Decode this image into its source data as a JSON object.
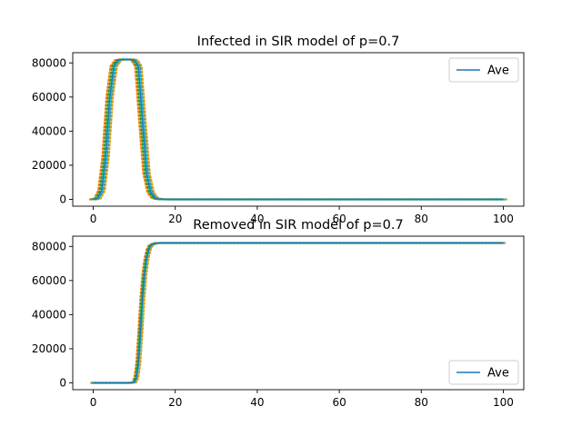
{
  "chart_data": [
    {
      "type": "line",
      "title": "Infected in SIR model of p=0.7",
      "xlabel": "",
      "ylabel": "",
      "xlim": [
        -5,
        105
      ],
      "ylim": [
        -4000,
        86000
      ],
      "xticks": [
        0,
        20,
        40,
        60,
        80,
        100
      ],
      "yticks": [
        0,
        20000,
        40000,
        60000,
        80000
      ],
      "grid": false,
      "legend_position": "top-right",
      "colors": {
        "average": "#1f77b4",
        "runs": [
          "#ff7f0e",
          "#2ca02c",
          "#1f77b4",
          "#d4a017",
          "#17becf"
        ]
      },
      "series": [
        {
          "name": "Ave",
          "x": [
            0,
            1,
            2,
            3,
            4,
            5,
            6,
            7,
            8,
            9,
            10,
            11,
            12,
            13,
            14,
            15,
            16,
            17,
            18,
            20,
            30,
            40,
            50,
            60,
            70,
            80,
            90,
            100
          ],
          "y": [
            0,
            500,
            5000,
            25000,
            60000,
            78000,
            81500,
            82000,
            82000,
            82000,
            81800,
            78000,
            45000,
            15000,
            4000,
            800,
            150,
            30,
            0,
            0,
            0,
            0,
            0,
            0,
            0,
            0,
            0,
            0
          ]
        }
      ],
      "runs_x_offsets": [
        -0.8,
        -0.4,
        0.4,
        0.8,
        0.2
      ]
    },
    {
      "type": "line",
      "title": "Removed in SIR model of p=0.7",
      "xlabel": "",
      "ylabel": "",
      "xlim": [
        -5,
        105
      ],
      "ylim": [
        -4000,
        86000
      ],
      "xticks": [
        0,
        20,
        40,
        60,
        80,
        100
      ],
      "yticks": [
        0,
        20000,
        40000,
        60000,
        80000
      ],
      "grid": false,
      "legend_position": "bottom-right",
      "colors": {
        "average": "#1f77b4",
        "runs": [
          "#ff7f0e",
          "#2ca02c",
          "#1f77b4",
          "#d4a017",
          "#17becf"
        ]
      },
      "series": [
        {
          "name": "Ave",
          "x": [
            0,
            1,
            2,
            3,
            4,
            5,
            6,
            7,
            8,
            9,
            10,
            10.5,
            11,
            11.5,
            12,
            12.5,
            13,
            13.5,
            14,
            15,
            16,
            17,
            18,
            20,
            30,
            40,
            50,
            60,
            70,
            80,
            90,
            100
          ],
          "y": [
            0,
            0,
            0,
            0,
            0,
            0,
            0,
            0,
            0,
            0,
            300,
            3000,
            12000,
            30000,
            50000,
            64000,
            73000,
            78000,
            80500,
            81800,
            82000,
            82000,
            82000,
            82000,
            82000,
            82000,
            82000,
            82000,
            82000,
            82000,
            82000,
            82000
          ]
        }
      ],
      "runs_x_offsets": [
        -0.5,
        -0.25,
        0.25,
        0.5,
        0.1
      ]
    }
  ]
}
